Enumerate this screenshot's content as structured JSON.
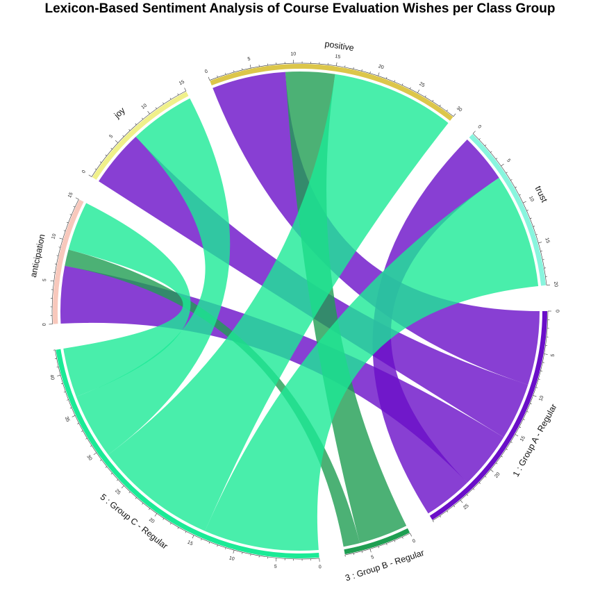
{
  "chart_data": {
    "type": "chord",
    "title": "Lexicon-Based Sentiment Analysis of Course Evaluation Wishes per Class Group",
    "sectors": [
      {
        "name": "1 : Group A - Regular",
        "total": 29,
        "color": "#6a0fc8",
        "group": "class"
      },
      {
        "name": "3 : Group B - Regular",
        "total": 8,
        "color": "#1f9e52",
        "group": "class"
      },
      {
        "name": "5 : Group C - Regular",
        "total": 43,
        "color": "#1bea96",
        "group": "class"
      },
      {
        "name": "anticipation",
        "total": 15,
        "color": "#f8c8bc",
        "group": "sentiment"
      },
      {
        "name": "joy",
        "total": 15,
        "color": "#f0f08a",
        "group": "sentiment"
      },
      {
        "name": "positive",
        "total": 30,
        "color": "#dcc64a",
        "group": "sentiment"
      },
      {
        "name": "trust",
        "total": 20,
        "color": "#88f5de",
        "group": "sentiment"
      }
    ],
    "links": [
      {
        "from": "1 : Group A - Regular",
        "to": "positive",
        "value": 9
      },
      {
        "from": "1 : Group A - Regular",
        "to": "joy",
        "value": 7
      },
      {
        "from": "1 : Group A - Regular",
        "to": "anticipation",
        "value": 7
      },
      {
        "from": "1 : Group A - Regular",
        "to": "trust",
        "value": 6
      },
      {
        "from": "3 : Group B - Regular",
        "to": "positive",
        "value": 6
      },
      {
        "from": "3 : Group B - Regular",
        "to": "anticipation",
        "value": 2
      },
      {
        "from": "5 : Group C - Regular",
        "to": "trust",
        "value": 14
      },
      {
        "from": "5 : Group C - Regular",
        "to": "positive",
        "value": 15
      },
      {
        "from": "5 : Group C - Regular",
        "to": "joy",
        "value": 8
      },
      {
        "from": "5 : Group C - Regular",
        "to": "anticipation",
        "value": 6
      }
    ],
    "tick_step_minor": 1,
    "tick_step_major": 5
  }
}
